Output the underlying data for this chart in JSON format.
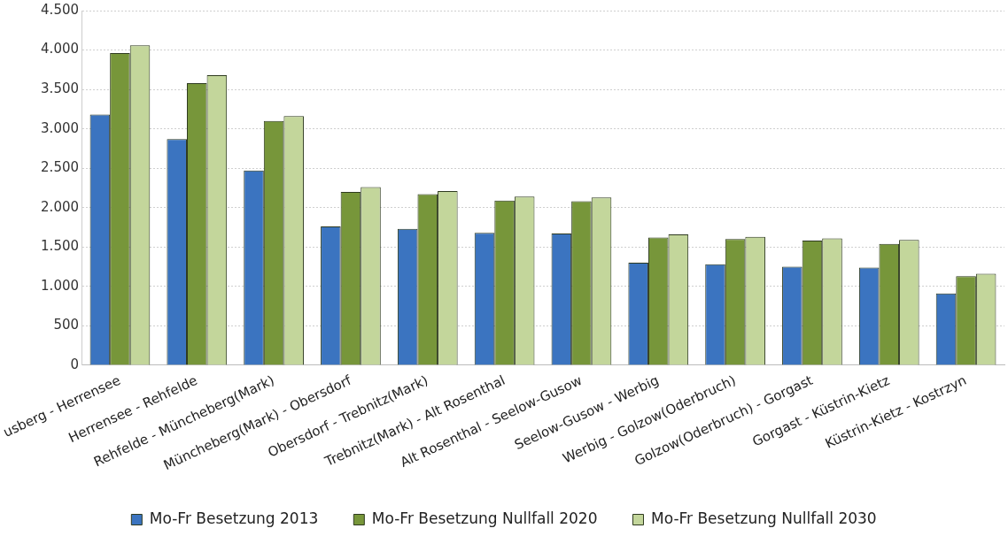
{
  "chart_data": {
    "type": "bar",
    "categories": [
      "usberg - Herrensee",
      "Herrensee - Rehfelde",
      "Rehfelde - Müncheberg(Mark)",
      "Müncheberg(Mark) - Obersdorf",
      "Obersdorf - Trebnitz(Mark)",
      "Trebnitz(Mark) - Alt Rosenthal",
      "Alt Rosenthal - Seelow-Gusow",
      "Seelow-Gusow - Werbig",
      "Werbig - Golzow(Oderbruch)",
      "Golzow(Oderbruch) - Gorgast",
      "Gorgast - Küstrin-Kietz",
      "Küstrin-Kietz - Kostrzyn"
    ],
    "series": [
      {
        "name": "Mo-Fr Besetzung 2013",
        "color": "#3b74c0",
        "values": [
          3180,
          2870,
          2470,
          1760,
          1730,
          1680,
          1670,
          1300,
          1280,
          1250,
          1240,
          910
        ]
      },
      {
        "name": "Mo-Fr Besetzung Nullfall 2020",
        "color": "#77963a",
        "values": [
          3960,
          3580,
          3100,
          2200,
          2170,
          2090,
          2080,
          1620,
          1600,
          1580,
          1540,
          1130
        ]
      },
      {
        "name": "Mo-Fr Besetzung Nullfall 2030",
        "color": "#c3d69b",
        "values": [
          4060,
          3680,
          3160,
          2260,
          2210,
          2140,
          2130,
          1660,
          1630,
          1610,
          1590,
          1160
        ]
      }
    ],
    "ylim": [
      0,
      4500
    ],
    "yticks": [
      {
        "value": 0,
        "label": "0"
      },
      {
        "value": 500,
        "label": "500"
      },
      {
        "value": 1000,
        "label": "1.000"
      },
      {
        "value": 1500,
        "label": "1.500"
      },
      {
        "value": 2000,
        "label": "2.000"
      },
      {
        "value": 2500,
        "label": "2.500"
      },
      {
        "value": 3000,
        "label": "3.000"
      },
      {
        "value": 3500,
        "label": "3.500"
      },
      {
        "value": 4000,
        "label": "4.000"
      },
      {
        "value": 4500,
        "label": "4.500"
      }
    ],
    "grid": "y",
    "legend": "bottom"
  }
}
